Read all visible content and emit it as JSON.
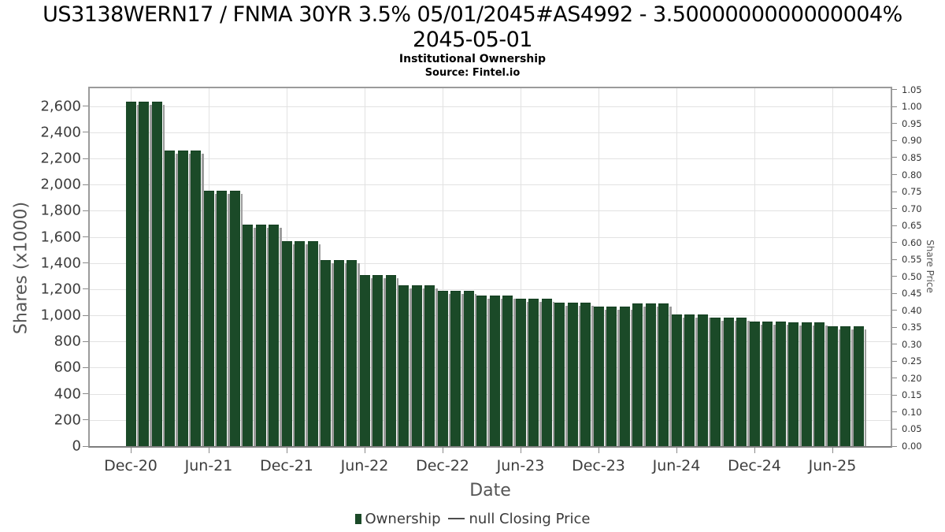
{
  "header": {
    "title_line1": "US3138WERN17 / FNMA 30YR 3.5% 05/01/2045#AS4992 - 3.5000000000000004%",
    "title_line2": "2045-05-01",
    "subtitle": "Institutional Ownership",
    "source": "Source: Fintel.io"
  },
  "chart_data": {
    "type": "bar",
    "title": "US3138WERN17 / FNMA 30YR 3.5% 05/01/2045#AS4992 - 3.5000000000000004% 2045-05-01",
    "subtitle": "Institutional Ownership",
    "source": "Source: Fintel.io",
    "xlabel": "Date",
    "ylabel_left": "Shares (x1000)",
    "ylabel_right": "Share Price",
    "bar_color": "#1b4a28",
    "bar_shadow_color": "#9d9d9d",
    "grid_color": "#e2e2e2",
    "legend_position": "bottom-center",
    "grid": true,
    "ylim_left": [
      0,
      2750
    ],
    "ylim_right": [
      0,
      1.06
    ],
    "y_left_tick_step": 200,
    "y_left_tick_labels": [
      "0",
      "200",
      "400",
      "600",
      "800",
      "1,000",
      "1,200",
      "1,400",
      "1,600",
      "1,800",
      "2,000",
      "2,200",
      "2,400",
      "2,600"
    ],
    "y_right_tick_step": 0.05,
    "y_right_tick_labels": [
      "0.00",
      "0.05",
      "0.10",
      "0.15",
      "0.20",
      "0.25",
      "0.30",
      "0.35",
      "0.40",
      "0.45",
      "0.50",
      "0.55",
      "0.60",
      "0.65",
      "0.70",
      "0.75",
      "0.80",
      "0.85",
      "0.90",
      "0.95",
      "1.00",
      "1.05"
    ],
    "x_tick_labels": [
      "Dec-20",
      "Jun-21",
      "Dec-21",
      "Jun-22",
      "Dec-22",
      "Jun-23",
      "Dec-23",
      "Jun-24",
      "Dec-24",
      "Jun-25"
    ],
    "legend": [
      {
        "label": "Ownership",
        "marker": "square",
        "color": "#1b4a28"
      },
      {
        "label": "null Closing Price",
        "marker": "line",
        "color": "#4d4d4d"
      }
    ],
    "series_name": "Ownership",
    "units": "shares (x1000)",
    "x": [
      "Dec-20",
      "Jan-21",
      "Feb-21",
      "Mar-21",
      "Apr-21",
      "May-21",
      "Jun-21",
      "Jul-21",
      "Aug-21",
      "Sep-21",
      "Oct-21",
      "Nov-21",
      "Dec-21",
      "Jan-22",
      "Feb-22",
      "Mar-22",
      "Apr-22",
      "May-22",
      "Jun-22",
      "Jul-22",
      "Aug-22",
      "Sep-22",
      "Oct-22",
      "Nov-22",
      "Dec-22",
      "Jan-23",
      "Feb-23",
      "Mar-23",
      "Apr-23",
      "May-23",
      "Jun-23",
      "Jul-23",
      "Aug-23",
      "Sep-23",
      "Oct-23",
      "Nov-23",
      "Dec-23",
      "Jan-24",
      "Feb-24",
      "Mar-24",
      "Apr-24",
      "May-24",
      "Jun-24",
      "Jul-24",
      "Aug-24",
      "Sep-24",
      "Oct-24",
      "Nov-24",
      "Dec-24",
      "Jan-25",
      "Feb-25",
      "Mar-25",
      "Apr-25",
      "May-25",
      "Jun-25",
      "Jul-25",
      "Aug-25"
    ],
    "values": [
      2635,
      2635,
      2635,
      2260,
      2260,
      2260,
      1955,
      1955,
      1955,
      1695,
      1695,
      1695,
      1565,
      1565,
      1565,
      1420,
      1420,
      1420,
      1310,
      1310,
      1310,
      1230,
      1230,
      1230,
      1190,
      1190,
      1190,
      1150,
      1150,
      1150,
      1130,
      1130,
      1130,
      1100,
      1100,
      1100,
      1065,
      1065,
      1065,
      1090,
      1090,
      1090,
      1005,
      1005,
      1005,
      980,
      980,
      980,
      950,
      950,
      950,
      948,
      948,
      948,
      915,
      915,
      915
    ]
  }
}
